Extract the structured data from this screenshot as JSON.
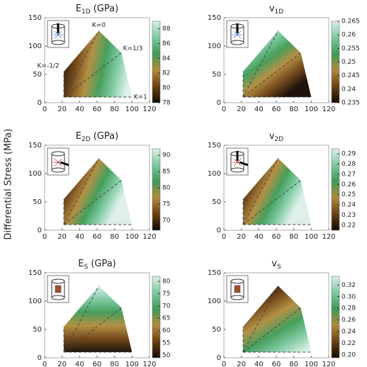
{
  "ylabel": "Differential Stress (MPa)",
  "colormap": [
    "#120800",
    "#6b3f10",
    "#b08a3a",
    "#3d9a55",
    "#7cc9a0",
    "#dcefe8"
  ],
  "region": {
    "x": [
      22,
      22,
      62,
      88,
      100
    ],
    "y": [
      10,
      55,
      127,
      88,
      10
    ]
  },
  "k_lines": [
    {
      "label": "K=-1/2",
      "x": [
        22,
        22
      ],
      "y": [
        10,
        55
      ]
    },
    {
      "label": "K=0",
      "x": [
        22,
        62
      ],
      "y": [
        10,
        127
      ]
    },
    {
      "label": "K=1/3",
      "x": [
        22,
        88
      ],
      "y": [
        10,
        88
      ]
    },
    {
      "label": "K=1",
      "x": [
        22,
        100
      ],
      "y": [
        10,
        10
      ]
    }
  ],
  "chart_data": [
    {
      "type": "contour",
      "title": {
        "main": "E",
        "sub": "1D",
        "unit": "(GPa)"
      },
      "xlim": [
        0,
        120
      ],
      "xticks": [
        0,
        20,
        40,
        60,
        80,
        100,
        120
      ],
      "ylim": [
        0,
        150
      ],
      "yticks": [
        0,
        50,
        100,
        150
      ],
      "clim": [
        78,
        89
      ],
      "cticks": [
        78,
        80,
        82,
        84,
        86,
        88
      ]
    },
    {
      "type": "contour",
      "title": {
        "main": "v",
        "sub": "1D"
      },
      "xlim": [
        0,
        120
      ],
      "xticks": [
        0,
        20,
        40,
        60,
        80,
        100,
        120
      ],
      "ylim": [
        0,
        150
      ],
      "yticks": [
        0,
        50,
        100,
        150
      ],
      "clim": [
        0.235,
        0.265
      ],
      "cticks": [
        0.235,
        0.24,
        0.245,
        0.25,
        0.255,
        0.26,
        0.265
      ]
    },
    {
      "type": "contour",
      "title": {
        "main": "E",
        "sub": "2D",
        "unit": "(GPa)"
      },
      "xlim": [
        0,
        120
      ],
      "xticks": [
        0,
        20,
        40,
        60,
        80,
        100,
        120
      ],
      "ylim": [
        0,
        150
      ],
      "yticks": [
        0,
        50,
        100,
        150
      ],
      "clim": [
        67,
        92
      ],
      "cticks": [
        70,
        75,
        80,
        85,
        90
      ]
    },
    {
      "type": "contour",
      "title": {
        "main": "v",
        "sub": "2D"
      },
      "xlim": [
        0,
        120
      ],
      "xticks": [
        0,
        20,
        40,
        60,
        80,
        100,
        120
      ],
      "ylim": [
        0,
        150
      ],
      "yticks": [
        0,
        50,
        100,
        150
      ],
      "clim": [
        0.215,
        0.295
      ],
      "cticks": [
        0.22,
        0.23,
        0.24,
        0.25,
        0.26,
        0.27,
        0.28,
        0.29
      ]
    },
    {
      "type": "contour",
      "title": {
        "main": "E",
        "sub": "S",
        "unit": "(GPa)"
      },
      "xlim": [
        0,
        120
      ],
      "xticks": [
        0,
        20,
        40,
        60,
        80,
        100,
        120
      ],
      "ylim": [
        0,
        150
      ],
      "yticks": [
        0,
        50,
        100,
        150
      ],
      "clim": [
        49,
        82
      ],
      "cticks": [
        50,
        55,
        60,
        65,
        70,
        75,
        80
      ]
    },
    {
      "type": "contour",
      "title": {
        "main": "v",
        "sub": "S"
      },
      "xlim": [
        0,
        120
      ],
      "xticks": [
        0,
        20,
        40,
        60,
        80,
        100,
        120
      ],
      "ylim": [
        0,
        150
      ],
      "yticks": [
        0,
        50,
        100,
        150
      ],
      "clim": [
        0.195,
        0.335
      ],
      "cticks": [
        {
          "value": 0.2,
          "label": "0.20"
        },
        0.22,
        0.24,
        0.26,
        0.28,
        {
          "value": 0.3,
          "label": "0.30"
        },
        0.32
      ]
    }
  ]
}
